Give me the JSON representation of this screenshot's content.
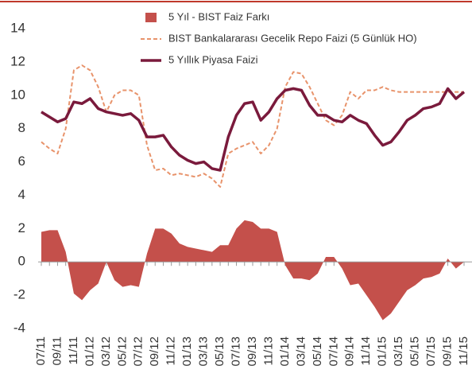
{
  "chart_data": {
    "type": "line",
    "categories": [
      "07/11",
      null,
      "09/11",
      null,
      "11/11",
      null,
      "01/12",
      null,
      "03/12",
      null,
      "05/12",
      null,
      "07/12",
      null,
      "09/12",
      null,
      "11/12",
      null,
      "01/13",
      null,
      "03/13",
      null,
      "05/13",
      null,
      "07/13",
      null,
      "09/13",
      null,
      "11/13",
      null,
      "01/14",
      null,
      "03/14",
      null,
      "05/14",
      null,
      "07/14",
      null,
      "09/14",
      null,
      "11/14",
      null,
      "01/15",
      null,
      "03/15",
      null,
      "05/15",
      null,
      "07/15",
      null,
      "09/15",
      null,
      "11/15"
    ],
    "series": [
      {
        "name": "5 Yıl - BIST Faiz Farkı",
        "color": "#c4504b",
        "kind": "area",
        "values": [
          1.8,
          1.9,
          1.9,
          0.6,
          -1.9,
          -2.3,
          -1.7,
          -1.3,
          0,
          -1.1,
          -1.5,
          -1.4,
          -1.5,
          0.5,
          2.0,
          2.0,
          1.7,
          1.1,
          0.9,
          0.8,
          0.7,
          0.6,
          1.0,
          1.0,
          2.0,
          2.5,
          2.4,
          2.0,
          2.0,
          1.8,
          -0.2,
          -1.0,
          -1.0,
          -1.1,
          -0.7,
          0.3,
          0.3,
          -0.4,
          -1.4,
          -1.3,
          -2.0,
          -2.7,
          -3.5,
          -3.1,
          -2.4,
          -1.7,
          -1.4,
          -1.0,
          -0.9,
          -0.7,
          0.2,
          -0.4,
          0.0
        ]
      },
      {
        "name": "BIST Bankalararası Gecelik Repo Faizi (5 Günlük HO)",
        "color": "#e8936b",
        "kind": "dashed",
        "values": [
          7.2,
          6.8,
          6.5,
          8.0,
          11.5,
          11.8,
          11.5,
          10.5,
          9.0,
          10.0,
          10.3,
          10.3,
          10.0,
          7.0,
          5.5,
          5.6,
          5.2,
          5.3,
          5.2,
          5.1,
          5.3,
          5.0,
          4.5,
          6.5,
          6.8,
          7.0,
          7.2,
          6.5,
          7.0,
          8.0,
          10.5,
          11.4,
          11.3,
          10.5,
          9.5,
          8.5,
          8.2,
          8.8,
          10.2,
          9.8,
          10.3,
          10.3,
          10.5,
          10.3,
          10.2,
          10.2,
          10.2,
          10.2,
          10.2,
          10.2,
          10.2,
          10.2,
          10.2
        ]
      },
      {
        "name": "5 Yıllık Piyasa Faizi",
        "color": "#7a1a3c",
        "kind": "solid",
        "values": [
          9.0,
          8.7,
          8.4,
          8.6,
          9.6,
          9.5,
          9.8,
          9.2,
          9.0,
          8.9,
          8.8,
          8.9,
          8.5,
          7.5,
          7.5,
          7.6,
          6.9,
          6.4,
          6.1,
          5.9,
          6.0,
          5.6,
          5.5,
          7.5,
          8.8,
          9.5,
          9.6,
          8.5,
          9.0,
          9.8,
          10.3,
          10.4,
          10.3,
          9.4,
          8.8,
          8.8,
          8.5,
          8.4,
          8.8,
          8.5,
          8.3,
          7.6,
          7.0,
          7.2,
          7.8,
          8.5,
          8.8,
          9.2,
          9.3,
          9.5,
          10.4,
          9.8,
          10.2
        ]
      }
    ],
    "ylim": [
      -4,
      14
    ],
    "yticks": [
      -4,
      -2,
      0,
      2,
      4,
      6,
      8,
      10,
      12,
      14
    ],
    "grid": false
  }
}
